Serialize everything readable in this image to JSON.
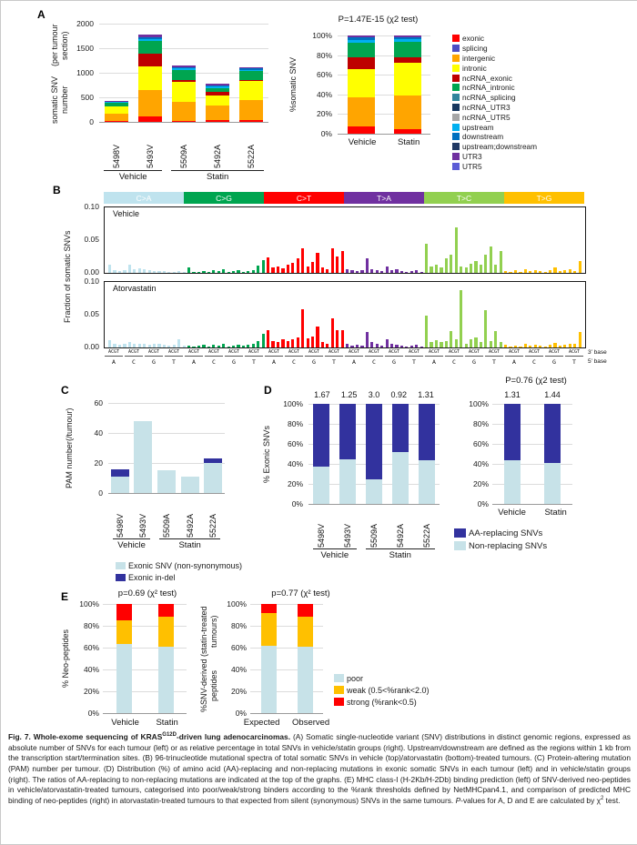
{
  "panel_labels": {
    "a": "A",
    "b": "B",
    "c": "C",
    "d": "D",
    "e": "E"
  },
  "colors": {
    "exonic": "#FF0000",
    "splicing": "#4D4DC3",
    "intergenic": "#FFA500",
    "intronic": "#FFFF00",
    "ncRNA_exonic": "#BE0000",
    "ncRNA_intronic": "#00A550",
    "ncRNA_splicing": "#31859C",
    "ncRNA_UTR3": "#17375E",
    "ncRNA_UTR5": "#A6A6A6",
    "upstream": "#00B0F0",
    "downstream": "#0070C0",
    "upstream_downstream": "#1F3864",
    "UTR3": "#7030A0",
    "UTR5": "#5C5CD6",
    "light_blue": "#C7E2E8",
    "navy": "#32329E",
    "weak_orange": "#FFC000",
    "strong_red": "#FF0000"
  },
  "spectra_axis": {
    "triplet": "ACGT",
    "group_count": 24,
    "five_prime_cycle": [
      "A",
      "C",
      "G",
      "T"
    ],
    "three_prime_label": "3’ base",
    "five_prime_label": "5’ base"
  },
  "chart_data": [
    {
      "id": "A-left",
      "type": "bar",
      "stacked": true,
      "ylabel": "somatic SNV number (per tumour section)",
      "ylabel_lines": [
        "somatic SNV number",
        "(per tumour section)"
      ],
      "ylim": [
        0,
        2000
      ],
      "yticks": [
        "2000",
        "1500",
        "1000",
        "500",
        "0"
      ],
      "categories": [
        "5498V",
        "5493V",
        "5509A",
        "5492A",
        "5522A"
      ],
      "groups": [
        {
          "label": "Vehicle",
          "span": 2
        },
        {
          "label": "Statin",
          "span": 3
        }
      ],
      "series": [
        {
          "name": "exonic",
          "color": "#FF0000",
          "values": [
            10,
            120,
            15,
            40,
            30
          ]
        },
        {
          "name": "intergenic",
          "color": "#FFA500",
          "values": [
            150,
            520,
            385,
            290,
            410
          ]
        },
        {
          "name": "intronic",
          "color": "#FFFF00",
          "values": [
            150,
            490,
            420,
            200,
            390
          ]
        },
        {
          "name": "ncRNA_exonic",
          "color": "#BE0000",
          "values": [
            10,
            260,
            40,
            80,
            30
          ]
        },
        {
          "name": "ncRNA_intronic",
          "color": "#00A550",
          "values": [
            70,
            260,
            190,
            80,
            170
          ]
        },
        {
          "name": "upstream",
          "color": "#00B0F0",
          "values": [
            10,
            40,
            35,
            30,
            35
          ]
        },
        {
          "name": "downstream",
          "color": "#0070C0",
          "values": [
            10,
            40,
            35,
            25,
            30
          ]
        },
        {
          "name": "UTR3",
          "color": "#7030A0",
          "values": [
            15,
            50,
            30,
            25,
            25
          ]
        }
      ]
    },
    {
      "id": "A-right",
      "type": "bar",
      "stacked": true,
      "percent": true,
      "title": "P=1.47E-15 (χ2 test)",
      "ylabel": "%somatic SNV",
      "ylim": [
        0,
        100
      ],
      "yticks": [
        "100%",
        "80%",
        "60%",
        "40%",
        "20%",
        "0%"
      ],
      "categories": [
        "Vehicle",
        "Statin"
      ],
      "series": [
        {
          "name": "exonic",
          "color": "#FF0000",
          "values": [
            7,
            4.5
          ]
        },
        {
          "name": "intergenic",
          "color": "#FFA500",
          "values": [
            30,
            34.5
          ]
        },
        {
          "name": "intronic",
          "color": "#FFFF00",
          "values": [
            29,
            33
          ]
        },
        {
          "name": "ncRNA_exonic",
          "color": "#BE0000",
          "values": [
            12,
            6
          ]
        },
        {
          "name": "ncRNA_intronic",
          "color": "#00A550",
          "values": [
            15,
            15.5
          ]
        },
        {
          "name": "upstream",
          "color": "#00B0F0",
          "values": [
            2.5,
            2.5
          ]
        },
        {
          "name": "downstream",
          "color": "#0070C0",
          "values": [
            2.5,
            2.5
          ]
        },
        {
          "name": "UTR3",
          "color": "#7030A0",
          "values": [
            2,
            1.5
          ]
        }
      ],
      "legend": [
        {
          "label": "exonic",
          "color": "#FF0000"
        },
        {
          "label": "splicing",
          "color": "#4D4DC3"
        },
        {
          "label": "intergenic",
          "color": "#FFA500"
        },
        {
          "label": "intronic",
          "color": "#FFFF00"
        },
        {
          "label": "ncRNA_exonic",
          "color": "#BE0000"
        },
        {
          "label": "ncRNA_intronic",
          "color": "#00A550"
        },
        {
          "label": "ncRNA_splicing",
          "color": "#31859C"
        },
        {
          "label": "ncRNA_UTR3",
          "color": "#17375E"
        },
        {
          "label": "ncRNA_UTR5",
          "color": "#A6A6A6"
        },
        {
          "label": "upstream",
          "color": "#00B0F0"
        },
        {
          "label": "downstream",
          "color": "#0070C0"
        },
        {
          "label": "upstream;downstream",
          "color": "#1F3864"
        },
        {
          "label": "UTR3",
          "color": "#7030A0"
        },
        {
          "label": "UTR5",
          "color": "#5C5CD6"
        }
      ]
    },
    {
      "id": "B-vehicle",
      "type": "bar",
      "name": "Vehicle",
      "ylabel": "Fraction of somatic SNVs",
      "ylim": [
        0,
        0.1
      ],
      "yticks": [
        "0.10",
        "0.05",
        "0.00"
      ],
      "bands": [
        {
          "label": "C>A",
          "color": "#BFE3EE"
        },
        {
          "label": "C>G",
          "color": "#00A550"
        },
        {
          "label": "C>T",
          "color": "#FF0000"
        },
        {
          "label": "T>A",
          "color": "#7030A0"
        },
        {
          "label": "T>C",
          "color": "#92D050"
        },
        {
          "label": "T>G",
          "color": "#FFC000"
        }
      ],
      "values": [
        0.012,
        0.004,
        0.003,
        0.004,
        0.013,
        0.006,
        0.007,
        0.006,
        0.004,
        0.003,
        0.003,
        0.003,
        0.002,
        0.002,
        0.003,
        0.002,
        0.008,
        0.002,
        0.002,
        0.003,
        0.002,
        0.004,
        0.003,
        0.005,
        0.002,
        0.003,
        0.004,
        0.002,
        0.003,
        0.004,
        0.011,
        0.02,
        0.024,
        0.008,
        0.01,
        0.007,
        0.012,
        0.015,
        0.022,
        0.038,
        0.01,
        0.016,
        0.03,
        0.008,
        0.006,
        0.038,
        0.025,
        0.033,
        0.006,
        0.004,
        0.003,
        0.004,
        0.022,
        0.006,
        0.004,
        0.003,
        0.01,
        0.004,
        0.005,
        0.003,
        0.002,
        0.003,
        0.004,
        0.002,
        0.045,
        0.01,
        0.013,
        0.008,
        0.022,
        0.028,
        0.07,
        0.01,
        0.008,
        0.014,
        0.018,
        0.012,
        0.028,
        0.04,
        0.012,
        0.034,
        0.003,
        0.002,
        0.004,
        0.002,
        0.006,
        0.003,
        0.004,
        0.003,
        0.002,
        0.004,
        0.008,
        0.003,
        0.004,
        0.005,
        0.003,
        0.018
      ]
    },
    {
      "id": "B-atorvastatin",
      "type": "bar",
      "name": "Atorvastatin",
      "ylim": [
        0,
        0.1
      ],
      "yticks": [
        "0.10",
        "0.05",
        "0.00"
      ],
      "values": [
        0.011,
        0.005,
        0.004,
        0.005,
        0.009,
        0.005,
        0.006,
        0.005,
        0.004,
        0.005,
        0.006,
        0.004,
        0.003,
        0.004,
        0.013,
        0.003,
        0.003,
        0.002,
        0.003,
        0.004,
        0.002,
        0.004,
        0.003,
        0.005,
        0.002,
        0.003,
        0.004,
        0.003,
        0.004,
        0.005,
        0.01,
        0.021,
        0.026,
        0.01,
        0.008,
        0.012,
        0.01,
        0.012,
        0.015,
        0.058,
        0.014,
        0.016,
        0.032,
        0.008,
        0.006,
        0.044,
        0.026,
        0.027,
        0.005,
        0.003,
        0.004,
        0.003,
        0.024,
        0.008,
        0.005,
        0.003,
        0.012,
        0.005,
        0.004,
        0.003,
        0.002,
        0.003,
        0.004,
        0.002,
        0.048,
        0.008,
        0.011,
        0.009,
        0.01,
        0.025,
        0.012,
        0.087,
        0.006,
        0.012,
        0.015,
        0.008,
        0.057,
        0.01,
        0.025,
        0.008,
        0.004,
        0.002,
        0.003,
        0.002,
        0.005,
        0.003,
        0.004,
        0.003,
        0.002,
        0.004,
        0.007,
        0.003,
        0.004,
        0.005,
        0.006,
        0.023
      ]
    },
    {
      "id": "C",
      "type": "bar",
      "stacked": true,
      "ylabel": "PAM number (/tumour)",
      "ylabel_lines": [
        "PAM number",
        "(/tumour)"
      ],
      "ylim": [
        0,
        60
      ],
      "yticks": [
        "60",
        "40",
        "20",
        "0"
      ],
      "categories": [
        "5498V",
        "5493V",
        "5509A",
        "5492A",
        "5522A"
      ],
      "groups": [
        {
          "label": "Vehicle",
          "span": 2
        },
        {
          "label": "Statin",
          "span": 3
        }
      ],
      "series": [
        {
          "name": "Exonic SNV (non-synonymous)",
          "color": "#C7E2E8",
          "values": [
            11,
            48,
            15,
            11,
            20
          ]
        },
        {
          "name": "Exonic in-del",
          "color": "#32329E",
          "values": [
            5,
            0,
            0,
            0,
            3
          ]
        }
      ],
      "legend": [
        {
          "label": "Exonic SNV (non-synonymous)",
          "color": "#C7E2E8"
        },
        {
          "label": "Exonic in-del",
          "color": "#32329E"
        }
      ]
    },
    {
      "id": "D-left",
      "type": "bar",
      "stacked": true,
      "percent": true,
      "ylabel": "% Exonic SNVs",
      "ylim": [
        0,
        100
      ],
      "yticks": [
        "100%",
        "80%",
        "60%",
        "40%",
        "20%",
        "0%"
      ],
      "ratios": [
        "1.67",
        "1.25",
        "3.0",
        "0.92",
        "1.31"
      ],
      "categories": [
        "5498V",
        "5493V",
        "5509A",
        "5492A",
        "5522A"
      ],
      "groups": [
        {
          "label": "Vehicle",
          "span": 2
        },
        {
          "label": "Statin",
          "span": 3
        }
      ],
      "series": [
        {
          "name": "Non-replacing SNVs",
          "color": "#C7E2E8",
          "values": [
            37.5,
            44.5,
            25,
            52,
            43.5
          ]
        },
        {
          "name": "AA-replacing SNVs",
          "color": "#32329E",
          "values": [
            62.5,
            55.5,
            75,
            48,
            56.5
          ]
        }
      ]
    },
    {
      "id": "D-right",
      "type": "bar",
      "stacked": true,
      "percent": true,
      "title": "P=0.76 (χ2 test)",
      "ylim": [
        0,
        100
      ],
      "yticks": [
        "100%",
        "80%",
        "60%",
        "40%",
        "20%",
        "0%"
      ],
      "ratios": [
        "1.31",
        "1.44"
      ],
      "categories": [
        "Vehicle",
        "Statin"
      ],
      "series": [
        {
          "name": "Non-replacing SNVs",
          "color": "#C7E2E8",
          "values": [
            43.3,
            41
          ]
        },
        {
          "name": "AA-replacing SNVs",
          "color": "#32329E",
          "values": [
            56.7,
            59
          ]
        }
      ],
      "legend": [
        {
          "label": "AA-replacing SNVs",
          "color": "#32329E"
        },
        {
          "label": "Non-replacing SNVs",
          "color": "#C7E2E8"
        }
      ]
    },
    {
      "id": "E-left",
      "type": "bar",
      "stacked": true,
      "percent": true,
      "title": "p=0.69 (χ² test)",
      "ylabel": "% Neo-peptides",
      "ylim": [
        0,
        100
      ],
      "yticks": [
        "100%",
        "80%",
        "60%",
        "40%",
        "20%",
        "0%"
      ],
      "categories": [
        "Vehicle",
        "Statin"
      ],
      "series": [
        {
          "name": "poor",
          "color": "#C7E2E8",
          "values": [
            63,
            61
          ]
        },
        {
          "name": "weak",
          "color": "#FFC000",
          "values": [
            22,
            27
          ]
        },
        {
          "name": "strong",
          "color": "#FF0000",
          "values": [
            15,
            12
          ]
        }
      ]
    },
    {
      "id": "E-right",
      "type": "bar",
      "stacked": true,
      "percent": true,
      "title": "p=0.77 (χ² test)",
      "ylabel": "%SNV-derived peptides (statin-treated tumours)",
      "ylabel_lines": [
        "%SNV-derived peptides",
        "(statin-treated tumours)"
      ],
      "ylim": [
        0,
        100
      ],
      "yticks": [
        "100%",
        "80%",
        "60%",
        "40%",
        "20%",
        "0%"
      ],
      "categories": [
        "Expected",
        "Observed"
      ],
      "series": [
        {
          "name": "poor",
          "color": "#C7E2E8",
          "values": [
            62,
            61
          ]
        },
        {
          "name": "weak",
          "color": "#FFC000",
          "values": [
            30,
            27
          ]
        },
        {
          "name": "strong",
          "color": "#FF0000",
          "values": [
            8,
            12
          ]
        }
      ],
      "legend": [
        {
          "label": "poor",
          "color": "#C7E2E8"
        },
        {
          "label": "weak (0.5<%rank<2.0)",
          "color": "#FFC000"
        },
        {
          "label": "strong (%rank<0.5)",
          "color": "#FF0000"
        }
      ]
    }
  ],
  "caption": {
    "segments": [
      {
        "text": "Fig. 7. Whole-exome sequencing of KRAS",
        "bold": true
      },
      {
        "text": "G12D",
        "bold": true,
        "sup": true
      },
      {
        "text": "-driven lung adenocarcinomas.",
        "bold": true
      },
      {
        "text": " (A) Somatic single-nucleotide variant (SNV) distributions in distinct genomic regions, expressed as absolute number of SNVs for each tumour (left) or as relative percentage in total SNVs in vehicle/statin groups (right). Upstream/downstream are defined as the regions within 1 kb from the transcription start/termination sites. (B) 96-trinucleotide mutational spectra of total somatic SNVs in vehicle (top)/atorvastatin (bottom)-treated tumours. (C) Protein-altering mutation (PAM) number per tumour. (D) Distribution (%) of amino acid (AA)-replacing and non-replacing mutations in exonic somatic SNVs in each tumour (left) and in vehicle/statin groups (right). The ratios of AA-replacing to non-replacing mutations are indicated at the top of the graphs. (E) MHC class-I (H-2Kb/H-2Db) binding prediction (left) of SNV-derived neo-peptides in vehicle/atorvastatin-treated tumours, categorised into poor/weak/strong binders according to the %rank thresholds defined by NetMHCpan4.1, and comparison of predicted MHC binding of neo-peptides (right) in atorvastatin-treated tumours to that expected from silent (synonymous) SNVs in the same tumours. "
      },
      {
        "text": "P",
        "italic": true
      },
      {
        "text": "-values for A, D and E are calculated by χ"
      },
      {
        "text": "2",
        "sup": true
      },
      {
        "text": " test."
      }
    ]
  }
}
